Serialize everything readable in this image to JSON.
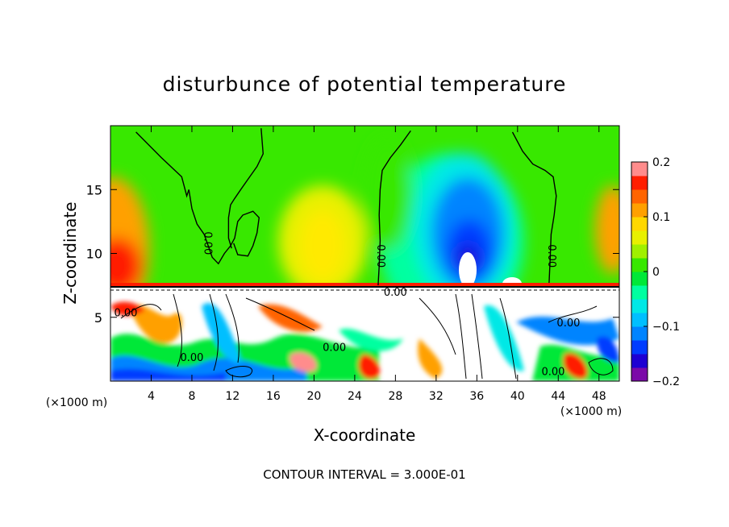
{
  "chart_data": {
    "type": "heatmap",
    "title": "disturbunce of potential temperature",
    "xlabel": "X-coordinate",
    "ylabel": "Z-coordinate",
    "x_unit_label": "(×1000 m)",
    "footer": "CONTOUR INTERVAL = 3.000E-01",
    "xlim": [
      0,
      50
    ],
    "ylim": [
      0,
      20
    ],
    "x_ticks": [
      4,
      8,
      12,
      16,
      20,
      24,
      28,
      32,
      36,
      40,
      44,
      48
    ],
    "y_ticks": [
      5,
      10,
      15
    ],
    "colorbar": {
      "min": -0.2,
      "max": 0.2,
      "tick_labels": [
        "0.2",
        "0.1",
        "0",
        "−0.1",
        "−0.2"
      ],
      "tick_values": [
        0.2,
        0.1,
        0,
        -0.1,
        -0.2
      ],
      "colors": [
        "#7b0aa8",
        "#1e00d2",
        "#003cff",
        "#0084ff",
        "#00bfff",
        "#00e8e6",
        "#00ffa0",
        "#00e838",
        "#38e800",
        "#a0f000",
        "#e8f000",
        "#ffd700",
        "#ffa000",
        "#ff6400",
        "#ff1e00",
        "#ff8c8c"
      ]
    },
    "contour_labels": [
      {
        "text": "0.00",
        "x": 9.5,
        "z": 10.8,
        "rotate": 90
      },
      {
        "text": "0.00",
        "x": 26.5,
        "z": 9.8,
        "rotate": 90
      },
      {
        "text": "0.00",
        "x": 43.3,
        "z": 9.8,
        "rotate": 90
      },
      {
        "text": "0.00",
        "x": 1.5,
        "z": 5.3,
        "rotate": 0
      },
      {
        "text": "0.00",
        "x": 8.0,
        "z": 1.8,
        "rotate": 0
      },
      {
        "text": "0.00",
        "x": 22.0,
        "z": 2.6,
        "rotate": 0
      },
      {
        "text": "0.00",
        "x": 28.0,
        "z": 6.9,
        "rotate": 0
      },
      {
        "text": "0.00",
        "x": 43.5,
        "z": 0.7,
        "rotate": 0
      },
      {
        "text": "0.00",
        "x": 45.0,
        "z": 4.5,
        "rotate": 0
      }
    ],
    "contours": [
      {
        "name": "zero-line-1",
        "points": [
          [
            2.5,
            19.5
          ],
          [
            5,
            17.5
          ],
          [
            7,
            16
          ],
          [
            7.5,
            14.5
          ],
          [
            7.7,
            15
          ],
          [
            8,
            13.5
          ],
          [
            8.5,
            12.3
          ],
          [
            9.2,
            11.5
          ],
          [
            9.6,
            10.6
          ],
          [
            10,
            9.7
          ],
          [
            10.6,
            9.2
          ],
          [
            11.2,
            10
          ],
          [
            11.8,
            10.6
          ],
          [
            12.2,
            11.2
          ],
          [
            12.5,
            12.5
          ],
          [
            13,
            13
          ],
          [
            14,
            13.3
          ],
          [
            14.6,
            12.8
          ],
          [
            14.4,
            11.6
          ],
          [
            14,
            10.6
          ],
          [
            13.5,
            9.8
          ],
          [
            12.5,
            9.9
          ],
          [
            12.1,
            10.8
          ]
        ]
      },
      {
        "name": "zero-line-2",
        "points": [
          [
            14.8,
            19.8
          ],
          [
            15,
            17.8
          ],
          [
            14.4,
            16.8
          ],
          [
            13.5,
            15.8
          ],
          [
            12.8,
            15
          ],
          [
            12.2,
            14.3
          ],
          [
            11.8,
            13.8
          ],
          [
            11.6,
            12.8
          ],
          [
            11.6,
            11.2
          ],
          [
            11.9,
            10.4
          ]
        ]
      },
      {
        "name": "zero-line-3",
        "points": [
          [
            29.5,
            19.6
          ],
          [
            28.5,
            18.5
          ],
          [
            27.5,
            17.5
          ],
          [
            26.7,
            16.5
          ],
          [
            26.5,
            15
          ],
          [
            26.4,
            13
          ],
          [
            26.5,
            11
          ],
          [
            26.4,
            9
          ],
          [
            26.3,
            7.5
          ]
        ]
      },
      {
        "name": "zero-line-4",
        "points": [
          [
            39.5,
            19.5
          ],
          [
            40.5,
            18
          ],
          [
            41.5,
            17
          ],
          [
            42.7,
            16.5
          ],
          [
            43.5,
            16
          ],
          [
            43.8,
            14.5
          ],
          [
            43.6,
            13
          ],
          [
            43.3,
            11.5
          ],
          [
            43.2,
            9.5
          ],
          [
            43.1,
            7.7
          ]
        ]
      }
    ]
  }
}
